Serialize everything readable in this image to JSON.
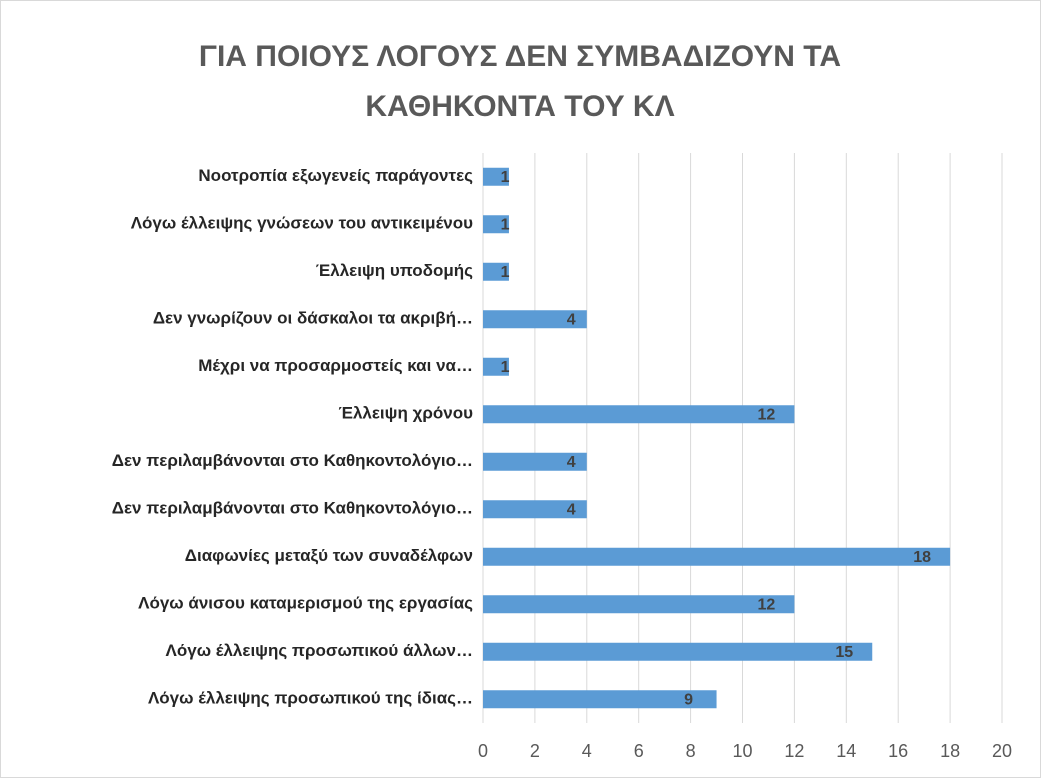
{
  "chart_data": {
    "type": "bar",
    "orientation": "horizontal",
    "title": "ΓΙΑ ΠΟΙΟΥΣ ΛΟΓΟΥΣ ΔΕΝ ΣΥΜΒΑΔΙΖΟΥΝ ΤΑ ΚΑΘΗΚΟΝΤΑ ΤΟΥ ΚΛ",
    "categories": [
      "Νοοτροπία εξωγενείς παράγοντες",
      "Λόγω έλλειψης γνώσεων του αντικειμένου",
      "Έλλειψη υποδομής",
      "Δεν γνωρίζουν οι δάσκαλοι τα ακριβή…",
      "Μέχρι να προσαρμοστείς και να…",
      "Έλλειψη χρόνου",
      "Δεν περιλαμβάνονται στο Καθηκοντολόγιο…",
      "Δεν περιλαμβάνονται στο Καθηκοντολόγιο…",
      "Διαφωνίες μεταξύ των συναδέλφων",
      "Λόγω άνισου καταμερισμού της εργασίας",
      "Λόγω έλλειψης προσωπικού άλλων…",
      "Λόγω έλλειψης προσωπικού της ίδιας…"
    ],
    "values": [
      1,
      1,
      1,
      4,
      1,
      12,
      4,
      4,
      18,
      12,
      15,
      9
    ],
    "color": "#5b9bd5",
    "xlim": [
      0,
      20
    ],
    "xticks": [
      0,
      2,
      4,
      6,
      8,
      10,
      12,
      14,
      16,
      18,
      20
    ],
    "grid": true
  }
}
